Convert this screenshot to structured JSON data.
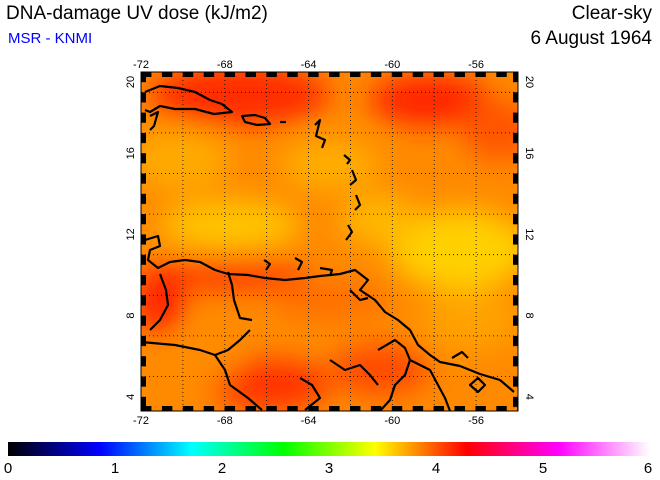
{
  "header": {
    "title": "DNA-damage UV dose (kJ/m2)",
    "subtitle": "MSR - KNMI",
    "condition": "Clear-sky",
    "date": "6 August 1964"
  },
  "map": {
    "lon_range": [
      -72,
      -54
    ],
    "lat_range": [
      3.5,
      20.5
    ],
    "lon_ticks": [
      -72,
      -68,
      -64,
      -60,
      -56
    ],
    "lat_ticks": [
      4,
      8,
      12,
      16,
      20
    ],
    "lon_tick_labels": [
      "-72",
      "-68",
      "-64",
      "-60",
      "-56"
    ],
    "lat_tick_labels": [
      "4",
      "8",
      "12",
      "16",
      "20"
    ],
    "gridlines": true,
    "field_range_kJ_m2": [
      3.4,
      4.6
    ]
  },
  "colorbar": {
    "min": 0,
    "max": 6,
    "tick_labels": [
      "0",
      "1",
      "2",
      "3",
      "4",
      "5",
      "6"
    ],
    "colors": [
      "#000000",
      "#0000ff",
      "#00ffff",
      "#00ff00",
      "#ffff00",
      "#ff0000",
      "#ff00ff",
      "#ffffff"
    ]
  }
}
